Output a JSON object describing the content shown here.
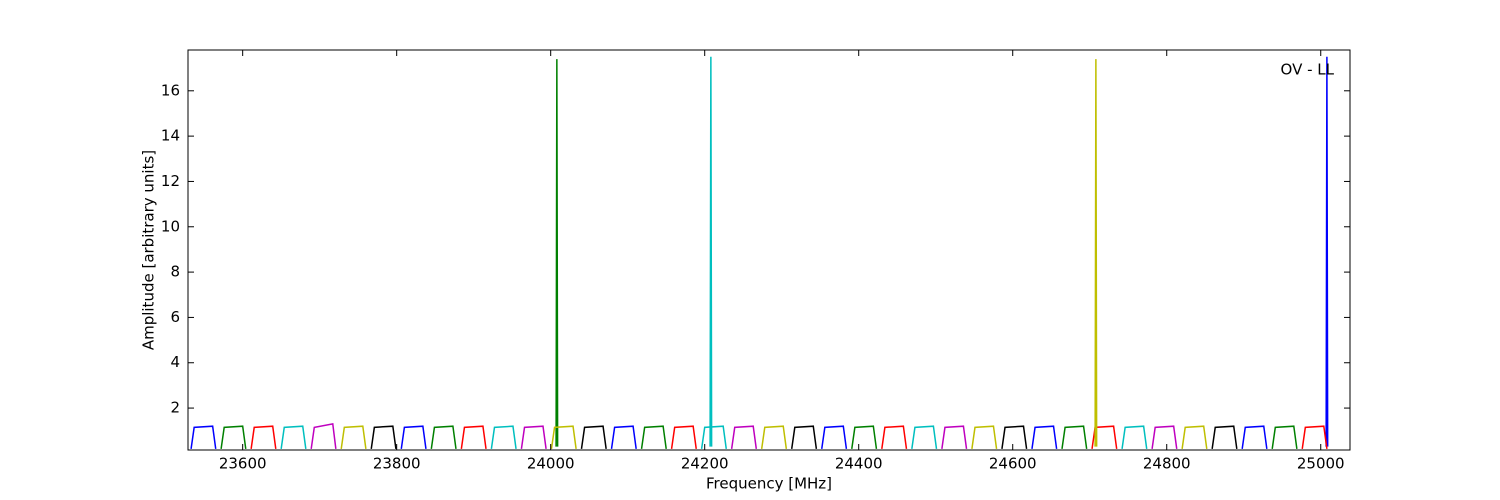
{
  "chart_data": {
    "type": "line",
    "annotation": "OV - LL",
    "xlabel": "Frequency [MHz]",
    "ylabel": "Amplitude [arbitrary units]",
    "xlim": [
      23529,
      25038
    ],
    "ylim": [
      0.15,
      17.8
    ],
    "xticks": [
      23600,
      23800,
      24000,
      24200,
      24400,
      24600,
      24800,
      25000
    ],
    "yticks": [
      2,
      4,
      6,
      8,
      10,
      12,
      14,
      16
    ],
    "series": [
      {
        "color": "#0000ff",
        "x": [
          23533,
          23537,
          23561,
          23565,
          null,
          23806,
          23810,
          23834,
          23838,
          null,
          24079,
          24083,
          24107,
          24111,
          null,
          24352,
          24356,
          24380,
          24384,
          null,
          24625,
          24629,
          24653,
          24657,
          null,
          24898,
          24902,
          24926,
          24930,
          null,
          25007,
          25008,
          25009
        ],
        "values": [
          0.2,
          1.15,
          1.2,
          0.2,
          null,
          0.2,
          1.15,
          1.2,
          0.2,
          null,
          0.2,
          1.15,
          1.2,
          0.2,
          null,
          0.2,
          1.15,
          1.2,
          0.2,
          null,
          0.2,
          1.15,
          1.2,
          0.2,
          null,
          0.2,
          1.15,
          1.2,
          0.2,
          null,
          0.3,
          17.5,
          0.3
        ]
      },
      {
        "color": "#008000",
        "x": [
          23572,
          23576,
          23600,
          23604,
          null,
          23845,
          23849,
          23873,
          23877,
          null,
          24118,
          24122,
          24146,
          24150,
          null,
          24391,
          24395,
          24419,
          24423,
          null,
          24664,
          24668,
          24692,
          24696,
          null,
          24937,
          24941,
          24965,
          24969,
          null,
          24007,
          24008,
          24009
        ],
        "values": [
          0.2,
          1.15,
          1.2,
          0.2,
          null,
          0.2,
          1.15,
          1.2,
          0.2,
          null,
          0.2,
          1.15,
          1.2,
          0.2,
          null,
          0.2,
          1.15,
          1.2,
          0.2,
          null,
          0.2,
          1.15,
          1.2,
          0.2,
          null,
          0.2,
          1.15,
          1.2,
          0.2,
          null,
          0.3,
          17.4,
          0.3
        ]
      },
      {
        "color": "#ff0000",
        "x": [
          23611,
          23615,
          23639,
          23643,
          null,
          23884,
          23888,
          23912,
          23916,
          null,
          24157,
          24161,
          24185,
          24189,
          null,
          24430,
          24434,
          24458,
          24462,
          null,
          24703,
          24707,
          24731,
          24735,
          null,
          24976,
          24980,
          25004,
          25008
        ],
        "values": [
          0.2,
          1.15,
          1.2,
          0.2,
          null,
          0.2,
          1.15,
          1.2,
          0.2,
          null,
          0.2,
          1.15,
          1.2,
          0.2,
          null,
          0.2,
          1.15,
          1.2,
          0.2,
          null,
          0.2,
          1.15,
          1.2,
          0.2,
          null,
          0.2,
          1.15,
          1.2,
          0.2
        ]
      },
      {
        "color": "#00bfbf",
        "x": [
          23650,
          23654,
          23678,
          23682,
          null,
          23923,
          23927,
          23951,
          23955,
          null,
          24196,
          24200,
          24224,
          24228,
          null,
          24469,
          24473,
          24497,
          24501,
          null,
          24742,
          24746,
          24770,
          24774,
          null,
          24207,
          24208,
          24209
        ],
        "values": [
          0.2,
          1.15,
          1.2,
          0.2,
          null,
          0.2,
          1.15,
          1.2,
          0.2,
          null,
          0.2,
          1.15,
          1.2,
          0.2,
          null,
          0.2,
          1.15,
          1.2,
          0.2,
          null,
          0.2,
          1.15,
          1.2,
          0.2,
          null,
          0.3,
          17.5,
          0.3
        ]
      },
      {
        "color": "#bf00bf",
        "x": [
          23689,
          23693,
          23717,
          23721,
          null,
          23962,
          23966,
          23990,
          23994,
          null,
          24235,
          24239,
          24263,
          24267,
          null,
          24508,
          24512,
          24536,
          24540,
          null,
          24781,
          24785,
          24809,
          24813
        ],
        "values": [
          0.2,
          1.15,
          1.3,
          0.2,
          null,
          0.2,
          1.15,
          1.2,
          0.2,
          null,
          0.2,
          1.15,
          1.2,
          0.2,
          null,
          0.2,
          1.15,
          1.2,
          0.2,
          null,
          0.2,
          1.15,
          1.2,
          0.2
        ]
      },
      {
        "color": "#bfbf00",
        "x": [
          23728,
          23732,
          23756,
          23760,
          null,
          24001,
          24005,
          24029,
          24033,
          null,
          24274,
          24278,
          24302,
          24306,
          null,
          24547,
          24551,
          24575,
          24579,
          null,
          24820,
          24824,
          24848,
          24852,
          null,
          24707,
          24708,
          24709
        ],
        "values": [
          0.2,
          1.15,
          1.2,
          0.2,
          null,
          0.2,
          1.15,
          1.2,
          0.2,
          null,
          0.2,
          1.15,
          1.2,
          0.2,
          null,
          0.2,
          1.15,
          1.2,
          0.2,
          null,
          0.2,
          1.15,
          1.2,
          0.2,
          null,
          0.3,
          17.4,
          0.3
        ]
      },
      {
        "color": "#000000",
        "x": [
          23767,
          23771,
          23795,
          23799,
          null,
          24040,
          24044,
          24068,
          24072,
          null,
          24313,
          24317,
          24341,
          24345,
          null,
          24586,
          24590,
          24614,
          24618,
          null,
          24859,
          24863,
          24887,
          24891
        ],
        "values": [
          0.2,
          1.15,
          1.2,
          0.2,
          null,
          0.2,
          1.15,
          1.2,
          0.2,
          null,
          0.2,
          1.15,
          1.2,
          0.2,
          null,
          0.2,
          1.15,
          1.2,
          0.2,
          null,
          0.2,
          1.15,
          1.2,
          0.2
        ]
      }
    ]
  }
}
